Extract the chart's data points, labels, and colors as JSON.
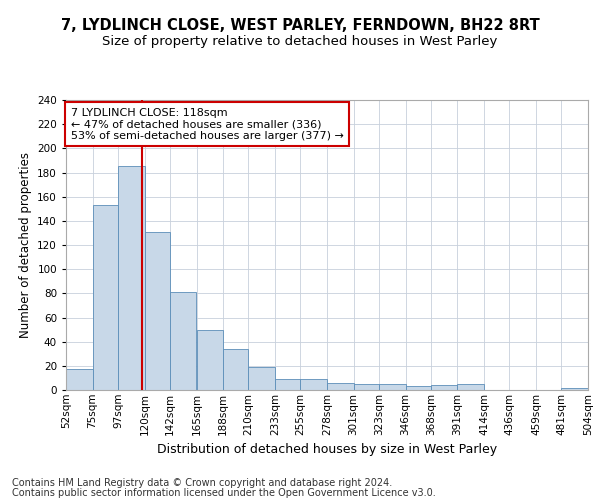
{
  "title_line1": "7, LYDLINCH CLOSE, WEST PARLEY, FERNDOWN, BH22 8RT",
  "title_line2": "Size of property relative to detached houses in West Parley",
  "xlabel": "Distribution of detached houses by size in West Parley",
  "ylabel": "Number of detached properties",
  "footer_line1": "Contains HM Land Registry data © Crown copyright and database right 2024.",
  "footer_line2": "Contains public sector information licensed under the Open Government Licence v3.0.",
  "annotation_line1": "7 LYDLINCH CLOSE: 118sqm",
  "annotation_line2": "← 47% of detached houses are smaller (336)",
  "annotation_line3": "53% of semi-detached houses are larger (377) →",
  "bin_edges": [
    52,
    75,
    97,
    120,
    142,
    165,
    188,
    210,
    233,
    255,
    278,
    301,
    323,
    346,
    368,
    391,
    414,
    436,
    459,
    481,
    504
  ],
  "bar_heights": [
    17,
    153,
    185,
    131,
    81,
    50,
    34,
    19,
    9,
    9,
    6,
    5,
    5,
    3,
    4,
    5,
    0,
    0,
    0,
    2
  ],
  "bar_color": "#c8d8e8",
  "bar_edge_color": "#5b8db8",
  "vline_color": "#cc0000",
  "vline_x": 118,
  "annotation_box_color": "#cc0000",
  "grid_color": "#c8d0dc",
  "ylim": [
    0,
    240
  ],
  "yticks": [
    0,
    20,
    40,
    60,
    80,
    100,
    120,
    140,
    160,
    180,
    200,
    220,
    240
  ],
  "title_fontsize": 10.5,
  "subtitle_fontsize": 9.5,
  "xlabel_fontsize": 9,
  "ylabel_fontsize": 8.5,
  "tick_fontsize": 7.5,
  "annotation_fontsize": 8,
  "footer_fontsize": 7,
  "x_labels": [
    "52sqm",
    "75sqm",
    "97sqm",
    "120sqm",
    "142sqm",
    "165sqm",
    "188sqm",
    "210sqm",
    "233sqm",
    "255sqm",
    "278sqm",
    "301sqm",
    "323sqm",
    "346sqm",
    "368sqm",
    "391sqm",
    "414sqm",
    "436sqm",
    "459sqm",
    "481sqm",
    "504sqm"
  ]
}
